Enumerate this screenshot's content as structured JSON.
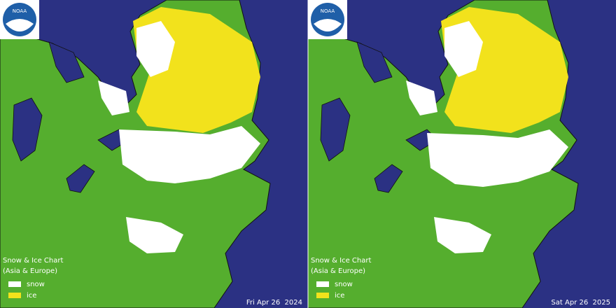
{
  "panels": [
    {
      "logo": "NOAA",
      "title": "Snow & Ice Chart",
      "subtitle": "(Asia & Europe)",
      "legend": [
        {
          "label": "snow",
          "color": "#ffffff"
        },
        {
          "label": "ice",
          "color": "#f2e21c"
        }
      ],
      "date": "Fri Apr 26  2024"
    },
    {
      "logo": "NOAA",
      "title": "Snow & Ice Chart",
      "subtitle": "(Asia & Europe)",
      "legend": [
        {
          "label": "snow",
          "color": "#ffffff"
        },
        {
          "label": "ice",
          "color": "#f2e21c"
        }
      ],
      "date": "Sat Apr 26  2025"
    }
  ]
}
